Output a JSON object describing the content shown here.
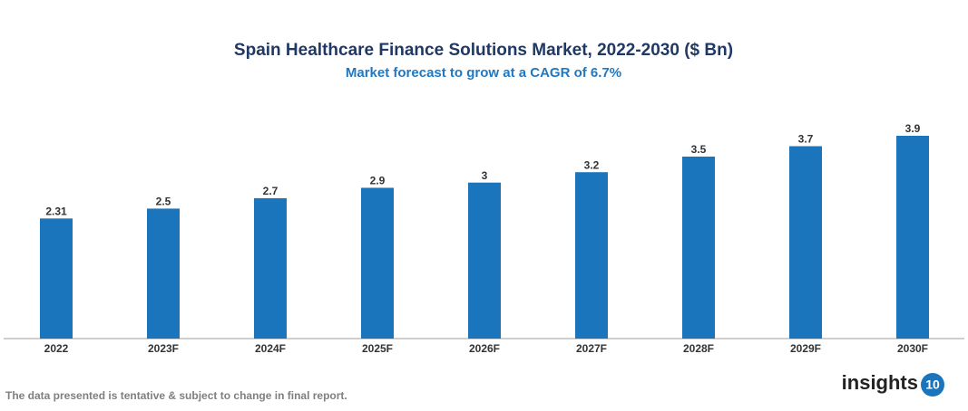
{
  "chart_data": {
    "type": "bar",
    "title": "Spain Healthcare Finance Solutions Market, 2022-2030 ($ Bn)",
    "subtitle": "Market forecast to grow at a CAGR of 6.7%",
    "categories": [
      "2022",
      "2023F",
      "2024F",
      "2025F",
      "2026F",
      "2027F",
      "2028F",
      "2029F",
      "2030F"
    ],
    "values": [
      2.31,
      2.5,
      2.7,
      2.9,
      3,
      3.2,
      3.5,
      3.7,
      3.9
    ],
    "color": "#1a75bc"
  },
  "footer": {
    "note": "The data presented is tentative & subject to change in final report.",
    "logo_text": "insights",
    "logo_badge": "10"
  }
}
